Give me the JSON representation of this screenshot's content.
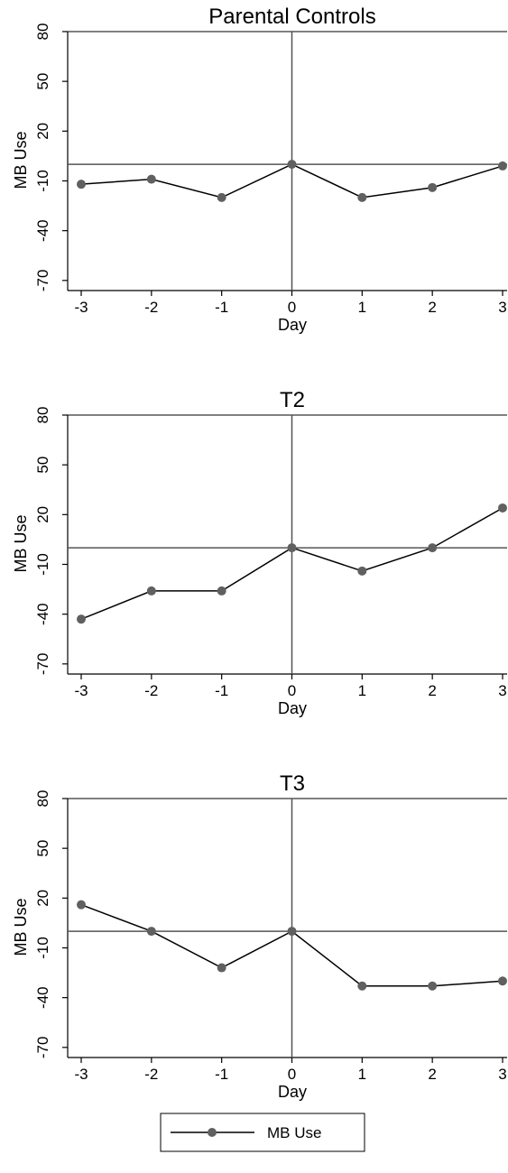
{
  "chart_data": [
    {
      "type": "line",
      "title": "Parental Controls",
      "xlabel": "Day",
      "ylabel": "MB Use",
      "x": [
        -3,
        -2,
        -1,
        0,
        1,
        2,
        3
      ],
      "xlim": [
        -3,
        3
      ],
      "ylim": [
        -75,
        80
      ],
      "yticks": [
        80,
        50,
        20,
        -10,
        -40,
        -70
      ],
      "xticks": [
        -3,
        -2,
        -1,
        0,
        1,
        2,
        3
      ],
      "reference_lines": {
        "x": 0,
        "y": 0
      },
      "series": [
        {
          "name": "MB Use",
          "values": [
            -12,
            -9,
            -20,
            0,
            -20,
            -14,
            -1
          ]
        }
      ]
    },
    {
      "type": "line",
      "title": "T2",
      "xlabel": "Day",
      "ylabel": "MB Use",
      "x": [
        -3,
        -2,
        -1,
        0,
        1,
        2,
        3
      ],
      "xlim": [
        -3,
        3
      ],
      "ylim": [
        -75,
        80
      ],
      "yticks": [
        80,
        50,
        20,
        -10,
        -40,
        -70
      ],
      "xticks": [
        -3,
        -2,
        -1,
        0,
        1,
        2,
        3
      ],
      "reference_lines": {
        "x": 0,
        "y": 0
      },
      "series": [
        {
          "name": "MB Use",
          "values": [
            -43,
            -26,
            -26,
            0,
            -14,
            0,
            24
          ]
        }
      ]
    },
    {
      "type": "line",
      "title": "T3",
      "xlabel": "Day",
      "ylabel": "MB Use",
      "x": [
        -3,
        -2,
        -1,
        0,
        1,
        2,
        3
      ],
      "xlim": [
        -3,
        3
      ],
      "ylim": [
        -75,
        80
      ],
      "yticks": [
        80,
        50,
        20,
        -10,
        -40,
        -70
      ],
      "xticks": [
        -3,
        -2,
        -1,
        0,
        1,
        2,
        3
      ],
      "reference_lines": {
        "x": 0,
        "y": 0
      },
      "series": [
        {
          "name": "MB Use",
          "values": [
            16,
            0,
            -22,
            0,
            -33,
            -33,
            -30
          ]
        }
      ]
    }
  ],
  "legend": {
    "label": "MB Use",
    "placement": "bottom-center"
  },
  "colors": {
    "series": "#000000",
    "marker": "#606060",
    "axis": "#000000",
    "reference": "#555555"
  }
}
